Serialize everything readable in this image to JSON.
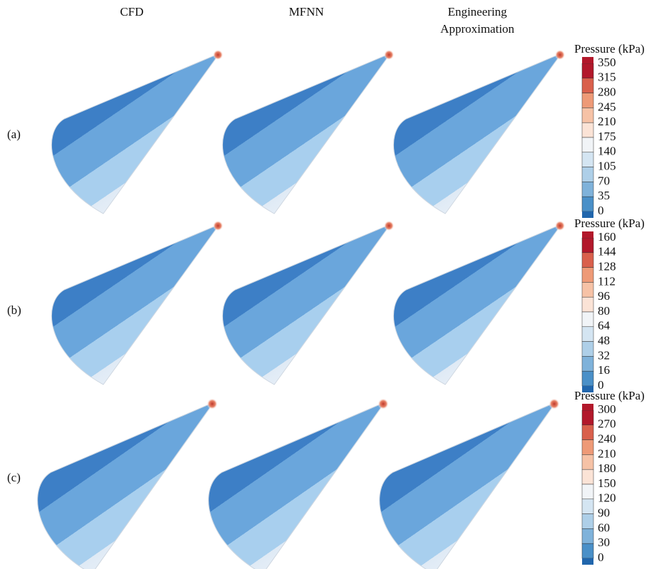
{
  "columns": [
    [
      "CFD"
    ],
    [
      "MFNN"
    ],
    [
      "Engineering",
      "Approximation"
    ]
  ],
  "rows": [
    "(a)",
    "(b)",
    "(c)"
  ],
  "colorbars": [
    {
      "title": "Pressure (kPa)",
      "ticks": [
        350,
        315,
        280,
        245,
        210,
        175,
        140,
        105,
        70,
        35,
        0
      ]
    },
    {
      "title": "Pressure (kPa)",
      "ticks": [
        160,
        144,
        128,
        112,
        96,
        80,
        64,
        48,
        32,
        16,
        0
      ]
    },
    {
      "title": "Pressure (kPa)",
      "ticks": [
        300,
        270,
        240,
        210,
        180,
        150,
        120,
        90,
        60,
        30,
        0
      ]
    }
  ]
}
